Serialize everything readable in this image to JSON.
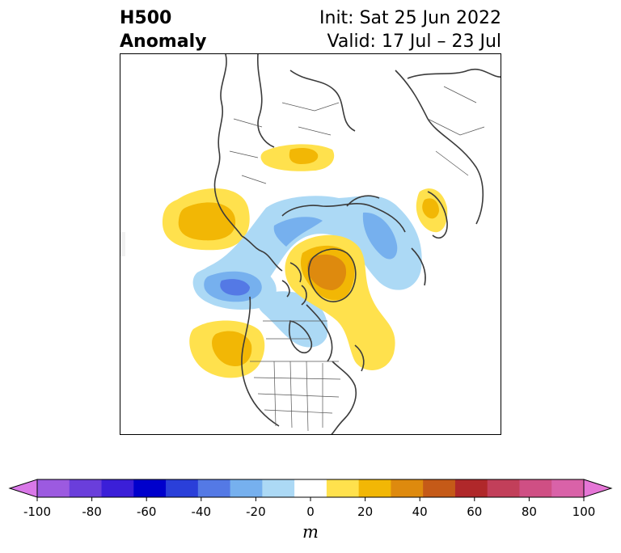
{
  "title": {
    "left_line1": "H500",
    "left_line2": "Anomaly",
    "right_line1": "Init: Sat 25 Jun 2022",
    "right_line2": "Valid: 17 Jul – 23 Jul"
  },
  "colors": {
    "warm": [
      "#ffe14d",
      "#f2b705",
      "#de8a0e",
      "#c55a18"
    ],
    "cool": [
      "#acd9f5",
      "#76b0ee",
      "#5479e5",
      "#2d3fd9"
    ],
    "coast": "#3b3b3b"
  },
  "colorbar": {
    "unit": "m",
    "colors": [
      "#d978e8",
      "#9c5ae0",
      "#6a3edb",
      "#3b1fd8",
      "#0000cc",
      "#2a3fd9",
      "#5479e5",
      "#76b0ee",
      "#acd9f5",
      "#ffffff",
      "#ffe14d",
      "#f2b705",
      "#de8a0e",
      "#c55a18",
      "#b0282a",
      "#c23f5a",
      "#cf4f84",
      "#d962a8",
      "#e576d6"
    ],
    "tick_labels": [
      "-100",
      "-80",
      "-60",
      "-40",
      "-20",
      "0",
      "20",
      "40",
      "60",
      "80",
      "100"
    ]
  }
}
